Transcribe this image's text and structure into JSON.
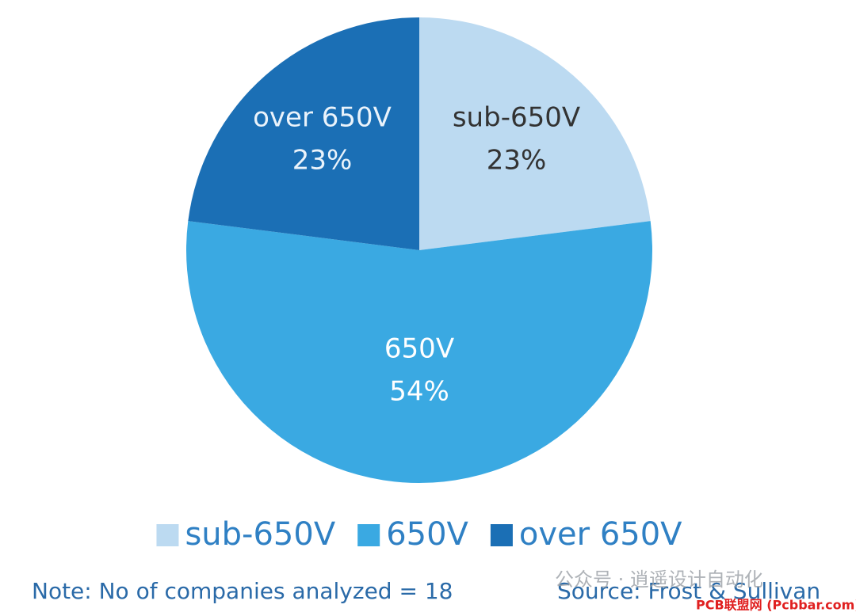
{
  "chart_data": {
    "type": "pie",
    "categories": [
      "sub-650V",
      "650V",
      "over 650V"
    ],
    "values": [
      23,
      54,
      23
    ],
    "value_labels": [
      "23%",
      "54%",
      "23%"
    ],
    "colors": [
      "#bcdaf1",
      "#3aa9e2",
      "#1b6fb5"
    ],
    "label_colors": [
      "#333333",
      "#ffffff",
      "#eaf3fb"
    ],
    "note": "Note: No of companies analyzed = 18",
    "source": "Source: Frost & Sullivan"
  },
  "watermark": {
    "wechat": "公众号 · 逍遥设计自动化",
    "site": "PCB联盟网 (Pcbbar.com)"
  }
}
